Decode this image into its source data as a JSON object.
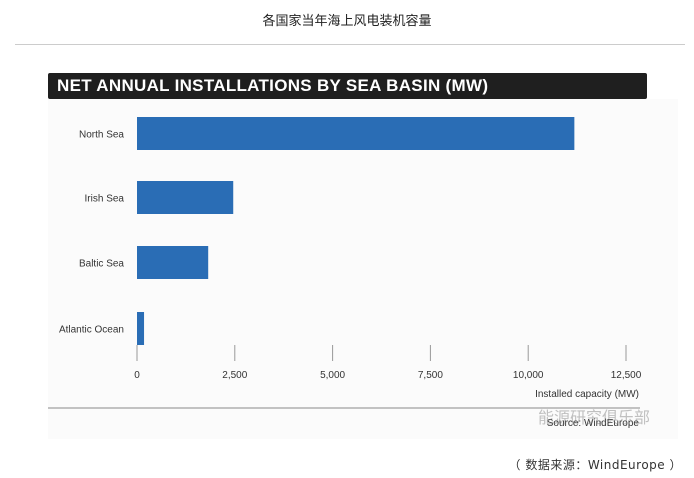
{
  "page_title": "各国家当年海上风电装机容量",
  "footer": "（ 数据来源：WindEurope ）",
  "watermark": "能源研究俱乐部",
  "chart_data": {
    "type": "bar",
    "orientation": "horizontal",
    "title": "NET ANNUAL INSTALLATIONS BY SEA BASIN (MW)",
    "categories": [
      "North Sea",
      "Irish Sea",
      "Baltic Sea",
      "Atlantic Ocean"
    ],
    "values": [
      11180,
      2460,
      1820,
      180
    ],
    "xlabel": "Installed capacity (MW)",
    "ylabel": "",
    "xlim": [
      0,
      12500
    ],
    "xticks": [
      0,
      2500,
      5000,
      7500,
      10000,
      12500
    ],
    "xtick_labels": [
      "0",
      "2,500",
      "5,000",
      "7,500",
      "10,000",
      "12,500"
    ],
    "source": "Source: WindEurope",
    "bar_color": "#2a6db5",
    "grid": false
  }
}
